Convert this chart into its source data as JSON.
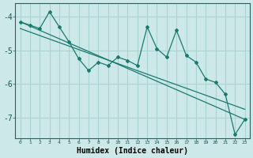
{
  "xlabel": "Humidex (Indice chaleur)",
  "bg_color": "#cce8e8",
  "grid_color": "#aad4d4",
  "line_color": "#1a7a6e",
  "x_data": [
    0,
    1,
    2,
    3,
    4,
    5,
    6,
    7,
    8,
    9,
    10,
    11,
    12,
    13,
    14,
    15,
    16,
    17,
    18,
    19,
    20,
    21,
    22,
    23
  ],
  "line1": [
    -4.15,
    -4.25,
    -4.35,
    -3.85,
    -4.3,
    -4.75,
    -5.25,
    -5.6,
    -5.35,
    -5.45,
    -5.2,
    -5.3,
    -5.45,
    -4.3,
    -4.95,
    -5.2,
    -4.4,
    -5.15,
    -5.35,
    -5.85,
    -5.95,
    -6.3,
    -7.5,
    -7.05
  ],
  "line2_x": [
    0,
    23
  ],
  "line2_y": [
    -4.15,
    -7.05
  ],
  "line3_x": [
    0,
    23
  ],
  "line3_y": [
    -4.35,
    -6.75
  ],
  "ylim": [
    -7.6,
    -3.6
  ],
  "xlim": [
    -0.5,
    23.5
  ],
  "yticks": [
    -7,
    -6,
    -5,
    -4
  ],
  "xticks": [
    0,
    1,
    2,
    3,
    4,
    5,
    6,
    7,
    8,
    9,
    10,
    11,
    12,
    13,
    14,
    15,
    16,
    17,
    18,
    19,
    20,
    21,
    22,
    23
  ]
}
